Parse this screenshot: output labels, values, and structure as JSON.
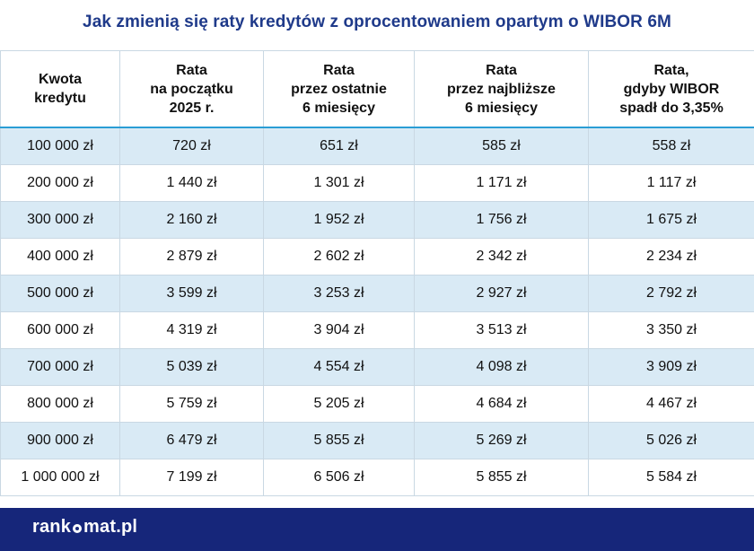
{
  "title": "Jak zmienią się raty kredytów z oprocentowaniem opartym o WIBOR 6M",
  "chart_data": {
    "type": "table",
    "columns": [
      "Kwota\nkredytu",
      "Rata\nna początku\n2025 r.",
      "Rata\nprzez ostatnie\n6 miesięcy",
      "Rata\nprzez najbliższe\n6 miesięcy",
      "Rata,\ngdyby WIBOR\nspadł do 3,35%"
    ],
    "rows": [
      [
        "100 000 zł",
        "720 zł",
        "651 zł",
        "585 zł",
        "558 zł"
      ],
      [
        "200 000 zł",
        "1 440 zł",
        "1 301 zł",
        "1 171 zł",
        "1 117 zł"
      ],
      [
        "300 000 zł",
        "2 160 zł",
        "1 952 zł",
        "1 756 zł",
        "1 675 zł"
      ],
      [
        "400 000 zł",
        "2 879 zł",
        "2 602 zł",
        "2 342 zł",
        "2 234 zł"
      ],
      [
        "500 000 zł",
        "3 599 zł",
        "3 253 zł",
        "2 927 zł",
        "2 792 zł"
      ],
      [
        "600 000 zł",
        "4 319 zł",
        "3 904 zł",
        "3 513 zł",
        "3 350 zł"
      ],
      [
        "700 000 zł",
        "5 039 zł",
        "4 554 zł",
        "4 098 zł",
        "3 909 zł"
      ],
      [
        "800 000 zł",
        "5 759 zł",
        "5 205 zł",
        "4 684 zł",
        "4 467 zł"
      ],
      [
        "900 000 zł",
        "6 479 zł",
        "5 855 zł",
        "5 269 zł",
        "5 026 zł"
      ],
      [
        "1 000 000 zł",
        "7 199 zł",
        "6 506 zł",
        "5 855 zł",
        "5 584 zł"
      ]
    ]
  },
  "footer": {
    "logo_part1": "rank",
    "logo_part2": "mat.pl",
    "logo_icon": "asterisk-dot-icon"
  },
  "colors": {
    "title": "#1f3a8a",
    "header_rule": "#2a9dd5",
    "row_shade": "#d9eaf5",
    "footer_bg": "#16267a"
  }
}
